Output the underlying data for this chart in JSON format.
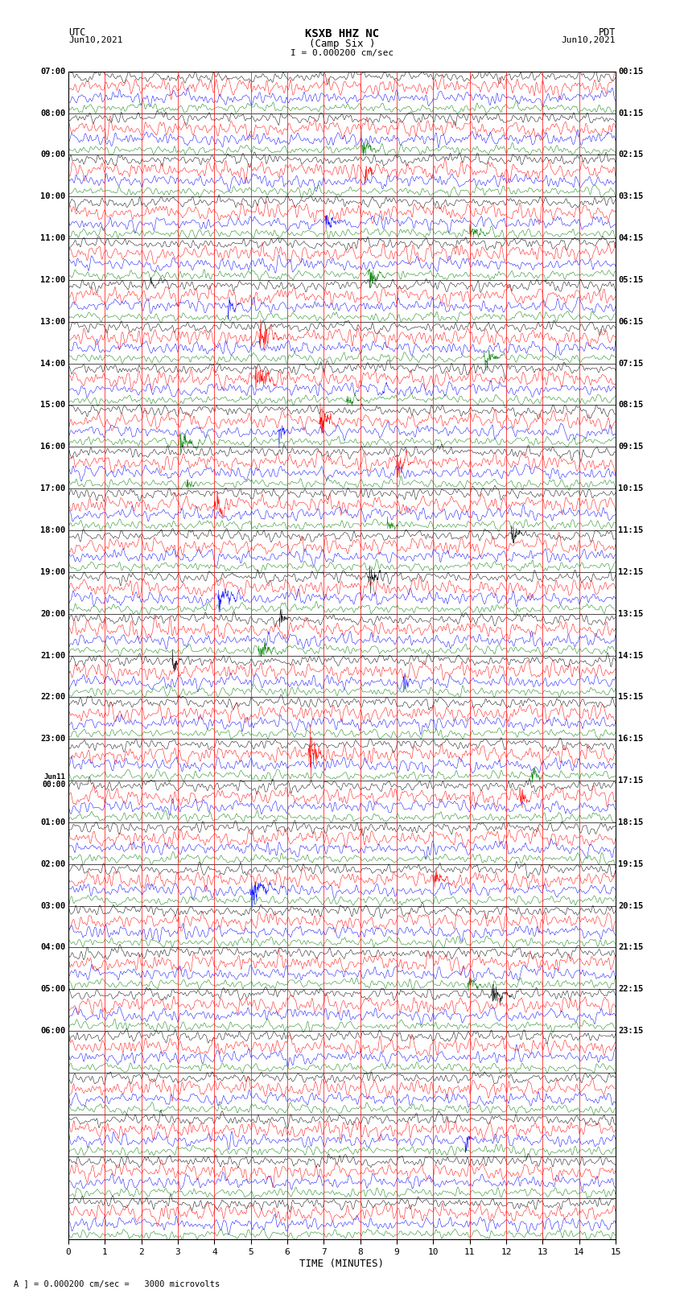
{
  "title_line1": "KSXB HHZ NC",
  "title_line2": "(Camp Six )",
  "scale_label": "I = 0.000200 cm/sec",
  "left_header_line1": "UTC",
  "left_header_line2": "Jun10,2021",
  "right_header_line1": "PDT",
  "right_header_line2": "Jun10,2021",
  "bottom_label": "TIME (MINUTES)",
  "scale_note": "A ] = 0.000200 cm/sec =   3000 microvolts",
  "num_rows": 28,
  "traces_per_row": 4,
  "colors": [
    "black",
    "red",
    "blue",
    "green"
  ],
  "bg_color": "white",
  "xlim": [
    0,
    15
  ],
  "xticks": [
    0,
    1,
    2,
    3,
    4,
    5,
    6,
    7,
    8,
    9,
    10,
    11,
    12,
    13,
    14,
    15
  ],
  "fig_width": 8.5,
  "fig_height": 16.13,
  "dpi": 100,
  "noise_scale": [
    0.06,
    0.09,
    0.07,
    0.05
  ],
  "left_times": [
    "07:00",
    "08:00",
    "09:00",
    "10:00",
    "11:00",
    "12:00",
    "13:00",
    "14:00",
    "15:00",
    "16:00",
    "17:00",
    "18:00",
    "19:00",
    "20:00",
    "21:00",
    "22:00",
    "23:00",
    "Jun11\n00:00",
    "01:00",
    "02:00",
    "03:00",
    "04:00",
    "05:00",
    "06:00",
    "",
    "",
    "",
    ""
  ],
  "right_times": [
    "00:15",
    "01:15",
    "02:15",
    "03:15",
    "04:15",
    "05:15",
    "06:15",
    "07:15",
    "08:15",
    "09:15",
    "10:15",
    "11:15",
    "12:15",
    "13:15",
    "14:15",
    "15:15",
    "16:15",
    "17:15",
    "18:15",
    "19:15",
    "20:15",
    "21:15",
    "22:15",
    "23:15",
    "",
    "",
    "",
    ""
  ],
  "vline_color": "red",
  "vline_positions": [
    1,
    2,
    3,
    4,
    5,
    6,
    7,
    8,
    9,
    10,
    11,
    12,
    13,
    14
  ],
  "pts_per_trace": 1800
}
